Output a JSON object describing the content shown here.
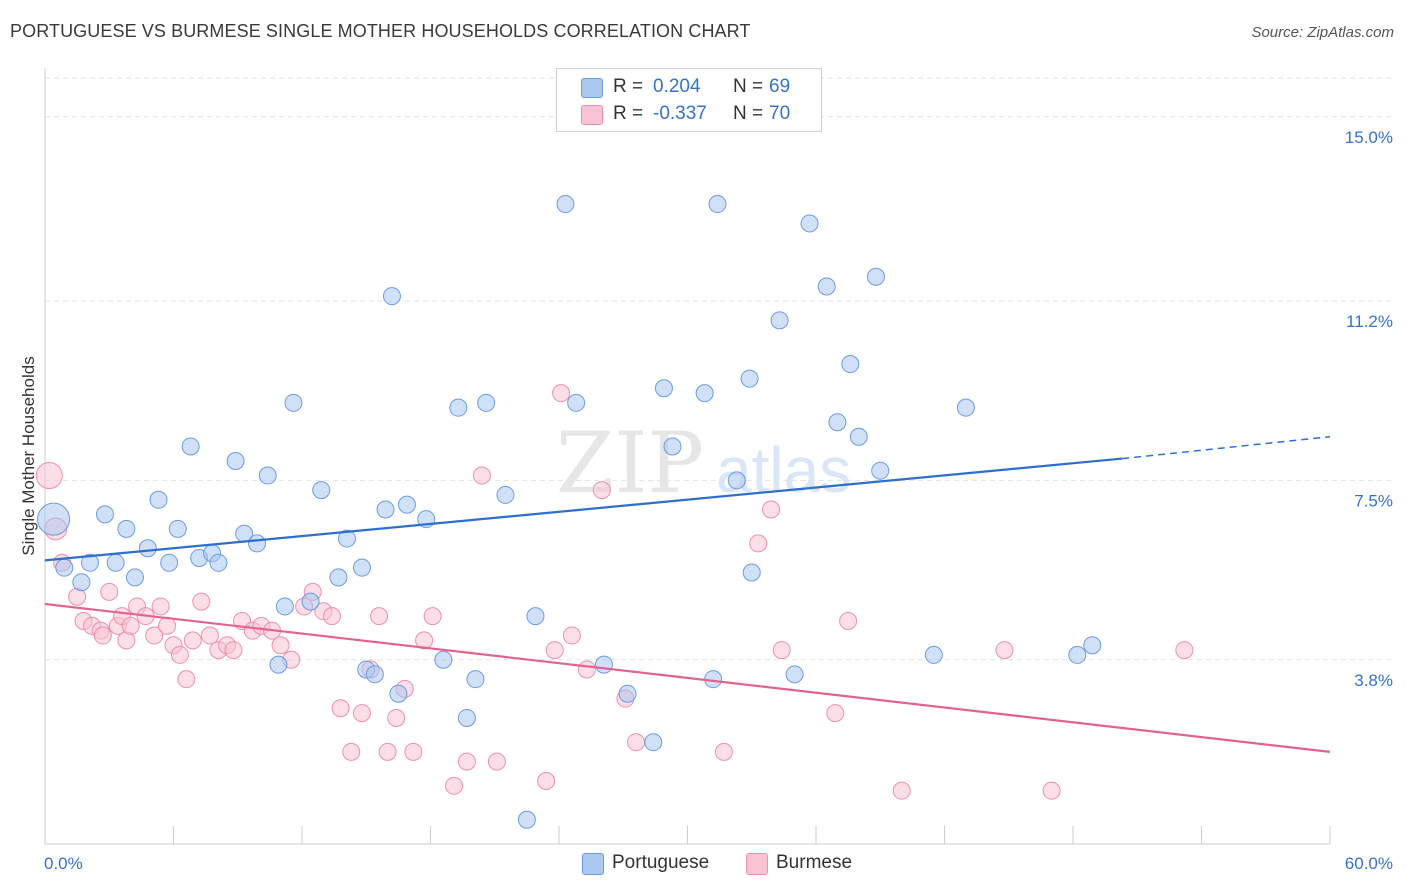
{
  "title": "PORTUGUESE VS BURMESE SINGLE MOTHER HOUSEHOLDS CORRELATION CHART",
  "source": "Source: ZipAtlas.com",
  "watermark": {
    "zip": "ZIP",
    "atlas": "atlas"
  },
  "legend": {
    "r_label": "R =",
    "n_label": "N =",
    "series": [
      {
        "name": "Portuguese",
        "r": "0.204",
        "n": "69",
        "fill": "#aac8f0",
        "stroke": "#6b9be0"
      },
      {
        "name": "Burmese",
        "r": "-0.337",
        "n": "70",
        "fill": "#f9c3d3",
        "stroke": "#ec8fae"
      }
    ]
  },
  "colors": {
    "blue_line": "#2d6fcc",
    "pink_line": "#e4628f",
    "tick_label": "#3573c9",
    "grid": "#e2e2e2"
  },
  "chart_data": {
    "type": "scatter",
    "title": "PORTUGUESE VS BURMESE SINGLE MOTHER HOUSEHOLDS CORRELATION CHART",
    "xlabel": "",
    "ylabel": "Single Mother Households",
    "xlim": [
      0,
      60
    ],
    "ylim": [
      0,
      15.8
    ],
    "x_tick_labels": [
      "0.0%",
      "60.0%"
    ],
    "y_ticks": [
      3.8,
      7.5,
      11.2,
      15.0
    ],
    "y_tick_labels": [
      "3.8%",
      "7.5%",
      "11.2%",
      "15.0%"
    ],
    "series": [
      {
        "name": "Portuguese",
        "trend": {
          "x0": 0,
          "y0": 5.85,
          "x1": 50.3,
          "y1": 7.95,
          "dash_to_x": 60,
          "dash_to_y": 8.4
        },
        "points": [
          [
            0.4,
            6.7
          ],
          [
            0.9,
            5.7
          ],
          [
            1.7,
            5.4
          ],
          [
            2.1,
            5.8
          ],
          [
            2.8,
            6.8
          ],
          [
            3.3,
            5.8
          ],
          [
            3.8,
            6.5
          ],
          [
            4.2,
            5.5
          ],
          [
            4.8,
            6.1
          ],
          [
            5.3,
            7.1
          ],
          [
            5.8,
            5.8
          ],
          [
            6.2,
            6.5
          ],
          [
            6.8,
            8.2
          ],
          [
            7.2,
            5.9
          ],
          [
            7.8,
            6.0
          ],
          [
            8.1,
            5.8
          ],
          [
            8.9,
            7.9
          ],
          [
            9.3,
            6.4
          ],
          [
            9.9,
            6.2
          ],
          [
            10.4,
            7.6
          ],
          [
            10.9,
            3.7
          ],
          [
            11.2,
            4.9
          ],
          [
            11.6,
            9.1
          ],
          [
            12.4,
            5.0
          ],
          [
            12.9,
            7.3
          ],
          [
            13.7,
            5.5
          ],
          [
            14.1,
            6.3
          ],
          [
            14.8,
            5.7
          ],
          [
            15.0,
            3.6
          ],
          [
            15.4,
            3.5
          ],
          [
            15.9,
            6.9
          ],
          [
            16.2,
            11.3
          ],
          [
            16.5,
            3.1
          ],
          [
            16.9,
            7.0
          ],
          [
            17.8,
            6.7
          ],
          [
            18.6,
            3.8
          ],
          [
            19.3,
            9.0
          ],
          [
            19.7,
            2.6
          ],
          [
            20.1,
            3.4
          ],
          [
            20.6,
            9.1
          ],
          [
            21.5,
            7.2
          ],
          [
            22.5,
            0.5
          ],
          [
            22.9,
            4.7
          ],
          [
            24.3,
            13.2
          ],
          [
            24.8,
            9.1
          ],
          [
            26.1,
            3.7
          ],
          [
            27.2,
            3.1
          ],
          [
            28.4,
            2.1
          ],
          [
            28.9,
            9.4
          ],
          [
            29.3,
            8.2
          ],
          [
            30.8,
            9.3
          ],
          [
            31.2,
            3.4
          ],
          [
            31.4,
            13.2
          ],
          [
            32.3,
            7.5
          ],
          [
            32.9,
            9.6
          ],
          [
            33.0,
            5.6
          ],
          [
            34.3,
            10.8
          ],
          [
            35.0,
            3.5
          ],
          [
            35.7,
            12.8
          ],
          [
            36.5,
            11.5
          ],
          [
            37.0,
            8.7
          ],
          [
            37.6,
            9.9
          ],
          [
            38.0,
            8.4
          ],
          [
            38.8,
            11.7
          ],
          [
            39.0,
            7.7
          ],
          [
            41.5,
            3.9
          ],
          [
            43.0,
            9.0
          ],
          [
            48.2,
            3.9
          ],
          [
            48.9,
            4.1
          ]
        ]
      },
      {
        "name": "Burmese",
        "trend": {
          "x0": 0,
          "y0": 4.95,
          "x1": 60,
          "y1": 1.9
        },
        "points": [
          [
            0.2,
            7.6
          ],
          [
            0.5,
            6.5
          ],
          [
            0.8,
            5.8
          ],
          [
            1.5,
            5.1
          ],
          [
            1.8,
            4.6
          ],
          [
            2.2,
            4.5
          ],
          [
            2.6,
            4.4
          ],
          [
            2.7,
            4.3
          ],
          [
            3.0,
            5.2
          ],
          [
            3.4,
            4.5
          ],
          [
            3.6,
            4.7
          ],
          [
            3.8,
            4.2
          ],
          [
            4.0,
            4.5
          ],
          [
            4.3,
            4.9
          ],
          [
            4.7,
            4.7
          ],
          [
            5.1,
            4.3
          ],
          [
            5.4,
            4.9
          ],
          [
            5.7,
            4.5
          ],
          [
            6.0,
            4.1
          ],
          [
            6.3,
            3.9
          ],
          [
            6.6,
            3.4
          ],
          [
            6.9,
            4.2
          ],
          [
            7.3,
            5.0
          ],
          [
            7.7,
            4.3
          ],
          [
            8.1,
            4.0
          ],
          [
            8.5,
            4.1
          ],
          [
            8.8,
            4.0
          ],
          [
            9.2,
            4.6
          ],
          [
            9.7,
            4.4
          ],
          [
            10.1,
            4.5
          ],
          [
            10.6,
            4.4
          ],
          [
            11.0,
            4.1
          ],
          [
            11.5,
            3.8
          ],
          [
            12.1,
            4.9
          ],
          [
            12.5,
            5.2
          ],
          [
            13.0,
            4.8
          ],
          [
            13.4,
            4.7
          ],
          [
            13.8,
            2.8
          ],
          [
            14.3,
            1.9
          ],
          [
            14.8,
            2.7
          ],
          [
            15.2,
            3.6
          ],
          [
            15.6,
            4.7
          ],
          [
            16.0,
            1.9
          ],
          [
            16.4,
            2.6
          ],
          [
            16.8,
            3.2
          ],
          [
            17.2,
            1.9
          ],
          [
            17.7,
            4.2
          ],
          [
            18.1,
            4.7
          ],
          [
            19.1,
            1.2
          ],
          [
            19.7,
            1.7
          ],
          [
            20.4,
            7.6
          ],
          [
            21.1,
            1.7
          ],
          [
            23.4,
            1.3
          ],
          [
            23.8,
            4.0
          ],
          [
            24.1,
            9.3
          ],
          [
            24.6,
            4.3
          ],
          [
            25.3,
            3.6
          ],
          [
            26.0,
            7.3
          ],
          [
            27.1,
            3.0
          ],
          [
            27.6,
            2.1
          ],
          [
            31.7,
            1.9
          ],
          [
            33.3,
            6.2
          ],
          [
            33.9,
            6.9
          ],
          [
            34.4,
            4.0
          ],
          [
            36.9,
            2.7
          ],
          [
            37.5,
            4.6
          ],
          [
            40.0,
            1.1
          ],
          [
            44.8,
            4.0
          ],
          [
            47.0,
            1.1
          ],
          [
            53.2,
            4.0
          ]
        ]
      }
    ]
  }
}
